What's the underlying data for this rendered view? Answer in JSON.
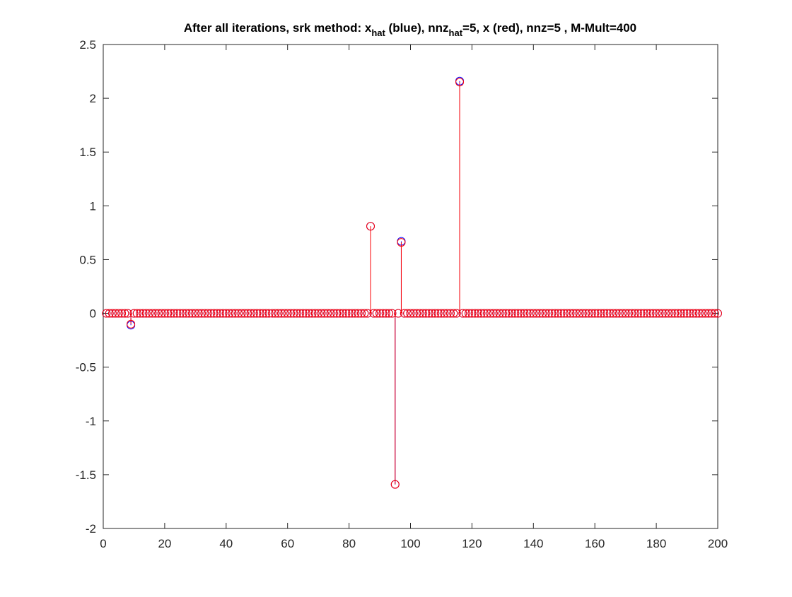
{
  "chart_data": {
    "type": "stem",
    "title_parts": {
      "a": "After all iterations, srk method: x",
      "b": "hat",
      "c": " (blue), nnz",
      "d": "hat",
      "e": "=5, x (red), nnz=5 , M-Mult=400"
    },
    "xlim": [
      0,
      200
    ],
    "ylim": [
      -2,
      2.5
    ],
    "xticks": [
      0,
      20,
      40,
      60,
      80,
      100,
      120,
      140,
      160,
      180,
      200
    ],
    "xtick_labels": [
      "0",
      "20",
      "40",
      "60",
      "80",
      "100",
      "120",
      "140",
      "160",
      "180",
      "200"
    ],
    "yticks": [
      -2,
      -1.5,
      -1,
      -0.5,
      0,
      0.5,
      1,
      1.5,
      2,
      2.5
    ],
    "ytick_labels": [
      "-2",
      "-1.5",
      "-1",
      "-0.5",
      "0",
      "0.5",
      "1",
      "1.5",
      "2",
      "2.5"
    ],
    "grid": false,
    "n_points": 200,
    "series": [
      {
        "label": "x_hat",
        "color": "#0000ff",
        "nonzeros": [
          {
            "x": 9,
            "y": -0.11
          },
          {
            "x": 87,
            "y": 0.81
          },
          {
            "x": 95,
            "y": -1.59
          },
          {
            "x": 97,
            "y": 0.67
          },
          {
            "x": 116,
            "y": 2.16
          }
        ]
      },
      {
        "label": "x",
        "color": "#ff0000",
        "nonzeros": [
          {
            "x": 9,
            "y": -0.1
          },
          {
            "x": 87,
            "y": 0.81
          },
          {
            "x": 95,
            "y": -1.59
          },
          {
            "x": 97,
            "y": 0.66
          },
          {
            "x": 116,
            "y": 2.15
          }
        ]
      }
    ]
  }
}
